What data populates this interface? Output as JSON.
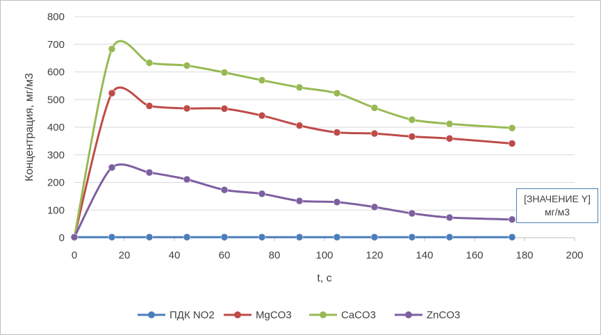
{
  "chart_data": {
    "type": "line",
    "title": "",
    "xlabel": "t, c",
    "ylabel": "Концентрация, мг/м3",
    "xlim": [
      0,
      200
    ],
    "ylim": [
      0,
      800
    ],
    "x_ticks": [
      "0",
      "20",
      "40",
      "60",
      "80",
      "100",
      "120",
      "140",
      "160",
      "180",
      "200"
    ],
    "y_ticks": [
      "0",
      "100",
      "200",
      "300",
      "400",
      "500",
      "600",
      "700",
      "800"
    ],
    "grid": "horizontal",
    "legend_position": "bottom",
    "x": [
      0,
      15,
      30,
      45,
      60,
      75,
      90,
      105,
      120,
      135,
      150,
      175
    ],
    "series": [
      {
        "name": "ПДК NO2",
        "color": "#4a7ebb",
        "smooth": false,
        "values": [
          2,
          2,
          2,
          2,
          2,
          2,
          2,
          2,
          2,
          2,
          2,
          2
        ]
      },
      {
        "name": "MgCO3",
        "color": "#be4b48",
        "smooth": true,
        "values": [
          2,
          523,
          477,
          468,
          467,
          442,
          406,
          381,
          377,
          366,
          359,
          341
        ]
      },
      {
        "name": "CaCO3",
        "color": "#98b954",
        "smooth": true,
        "values": [
          2,
          683,
          633,
          623,
          598,
          570,
          544,
          523,
          470,
          427,
          412,
          397
        ]
      },
      {
        "name": "ZnCO3",
        "color": "#7d5fa0",
        "smooth": true,
        "values": [
          2,
          254,
          236,
          211,
          173,
          159,
          133,
          129,
          111,
          88,
          73,
          66
        ]
      }
    ],
    "data_label": {
      "line1": "[ЗНАЧЕНИЕ Y]",
      "line2": "мг/м3"
    }
  }
}
